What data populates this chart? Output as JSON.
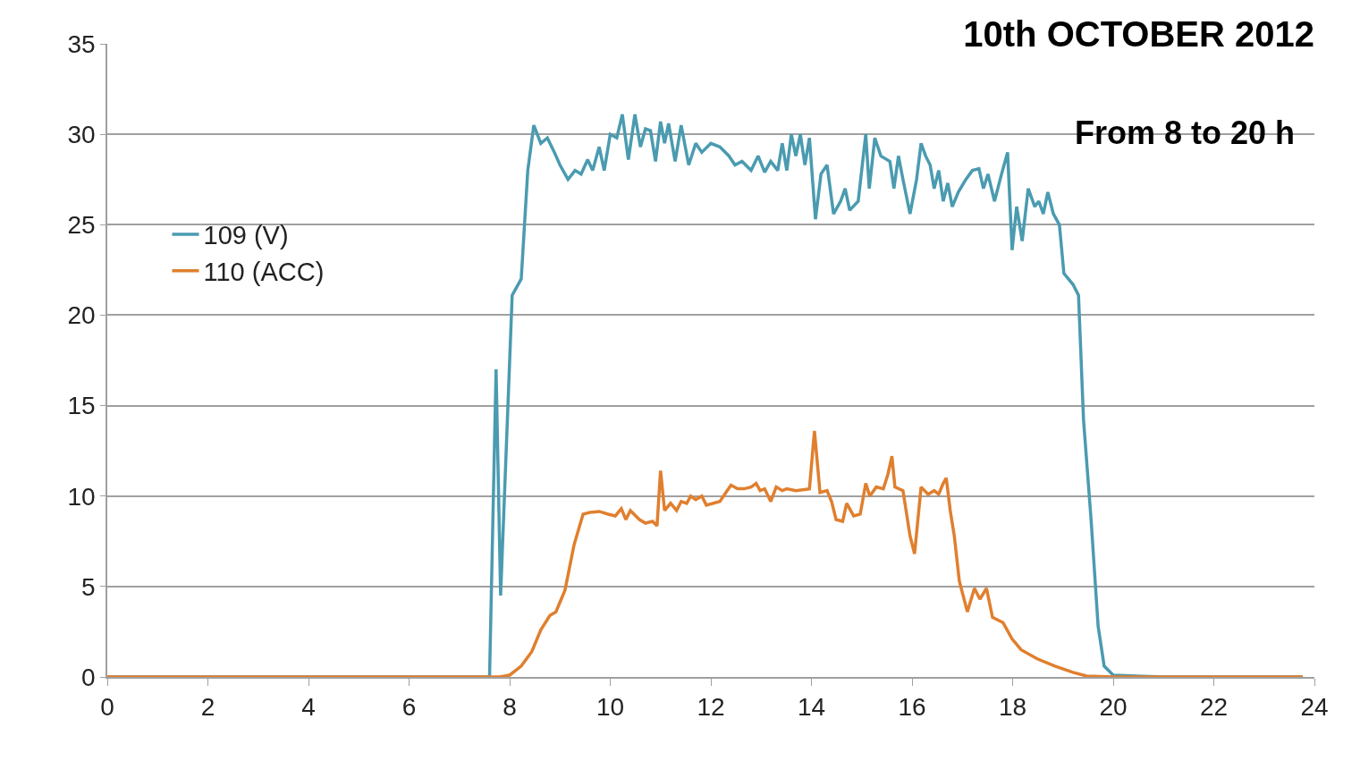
{
  "chart_data": {
    "type": "line",
    "title": "10th OCTOBER 2012",
    "subtitle": "From 8 to 20 h",
    "xlim": [
      0,
      24
    ],
    "xticks": [
      0,
      2,
      4,
      6,
      8,
      10,
      12,
      14,
      16,
      18,
      20,
      22,
      24
    ],
    "ylim": [
      0,
      35
    ],
    "yticks": [
      0,
      5,
      10,
      15,
      20,
      25,
      30,
      35
    ],
    "grid": "y",
    "legend": "left",
    "marker": "none",
    "line_style": "solid",
    "series": [
      {
        "name": "109 (V)",
        "color": "#4a9bb0",
        "x": [
          0,
          7.6,
          7.73,
          7.82,
          8.05,
          8.23,
          8.36,
          8.48,
          8.62,
          8.75,
          8.89,
          9.0,
          9.16,
          9.3,
          9.42,
          9.55,
          9.65,
          9.78,
          9.88,
          10.0,
          10.13,
          10.24,
          10.36,
          10.49,
          10.6,
          10.7,
          10.8,
          10.9,
          11.0,
          11.08,
          11.16,
          11.29,
          11.41,
          11.56,
          11.7,
          11.82,
          12.0,
          12.18,
          12.36,
          12.48,
          12.62,
          12.8,
          12.94,
          13.07,
          13.19,
          13.33,
          13.42,
          13.51,
          13.6,
          13.69,
          13.78,
          13.87,
          13.96,
          14.08,
          14.19,
          14.31,
          14.44,
          14.58,
          14.67,
          14.76,
          14.93,
          15.08,
          15.15,
          15.26,
          15.38,
          15.56,
          15.64,
          15.73,
          15.82,
          15.96,
          16.09,
          16.18,
          16.27,
          16.36,
          16.44,
          16.53,
          16.62,
          16.71,
          16.8,
          16.92,
          17.07,
          17.2,
          17.33,
          17.42,
          17.51,
          17.64,
          17.78,
          17.9,
          17.99,
          18.08,
          18.19,
          18.31,
          18.44,
          18.52,
          18.61,
          18.7,
          18.81,
          18.93,
          19.02,
          19.2,
          19.31,
          19.41,
          19.56,
          19.7,
          19.82,
          20.0,
          21.0,
          23.77
        ],
        "values": [
          0,
          0,
          17,
          4.5,
          21.1,
          22,
          28,
          30.5,
          29.5,
          29.8,
          29,
          28.3,
          27.5,
          28,
          27.8,
          28.6,
          28,
          29.3,
          28,
          30,
          29.8,
          31.1,
          28.6,
          31.1,
          29.3,
          30.3,
          30.2,
          28.5,
          30.7,
          29.5,
          30.6,
          28.5,
          30.5,
          28.3,
          29.5,
          29,
          29.5,
          29.3,
          28.8,
          28.3,
          28.5,
          28,
          28.8,
          27.9,
          28.5,
          28,
          29.5,
          28,
          30,
          28.8,
          30,
          28.3,
          29.8,
          25.3,
          27.8,
          28.3,
          25.6,
          26.3,
          27,
          25.8,
          26.3,
          30,
          27,
          29.8,
          28.8,
          28.5,
          27,
          28.8,
          27.5,
          25.6,
          27.5,
          29.5,
          28.8,
          28.3,
          27,
          28,
          26.3,
          27.3,
          26,
          26.8,
          27.5,
          28,
          28.1,
          27,
          27.8,
          26.3,
          27.8,
          29,
          23.6,
          26,
          24.1,
          27,
          26,
          26.3,
          25.6,
          26.8,
          25.6,
          25,
          22.3,
          21.7,
          21.1,
          14.2,
          8.7,
          2.8,
          0.6,
          0.1,
          0,
          0
        ]
      },
      {
        "name": "110 (ACC)",
        "color": "#e07f2e",
        "x": [
          0,
          7.8,
          8.0,
          8.23,
          8.44,
          8.62,
          8.8,
          8.92,
          9.1,
          9.28,
          9.46,
          9.6,
          9.78,
          9.96,
          10.1,
          10.22,
          10.31,
          10.4,
          10.58,
          10.7,
          10.84,
          10.93,
          11.0,
          11.08,
          11.2,
          11.32,
          11.41,
          11.52,
          11.6,
          11.7,
          11.82,
          11.91,
          12.05,
          12.18,
          12.3,
          12.4,
          12.53,
          12.66,
          12.8,
          12.9,
          12.98,
          13.07,
          13.19,
          13.3,
          13.42,
          13.51,
          13.69,
          13.96,
          14.06,
          14.17,
          14.31,
          14.4,
          14.49,
          14.62,
          14.7,
          14.84,
          14.97,
          15.08,
          15.16,
          15.29,
          15.43,
          15.52,
          15.6,
          15.66,
          15.82,
          15.96,
          16.05,
          16.18,
          16.32,
          16.44,
          16.53,
          16.62,
          16.68,
          16.76,
          16.84,
          16.94,
          17.1,
          17.24,
          17.35,
          17.48,
          17.6,
          17.81,
          17.99,
          18.17,
          18.49,
          18.84,
          19.2,
          19.47,
          20.0,
          23.77
        ],
        "values": [
          0,
          0,
          0.1,
          0.6,
          1.4,
          2.6,
          3.4,
          3.6,
          4.8,
          7.3,
          9.0,
          9.1,
          9.15,
          9.0,
          8.9,
          9.3,
          8.7,
          9.2,
          8.7,
          8.5,
          8.6,
          8.35,
          11.4,
          9.2,
          9.6,
          9.2,
          9.7,
          9.6,
          10.0,
          9.8,
          10.0,
          9.5,
          9.6,
          9.7,
          10.2,
          10.6,
          10.4,
          10.4,
          10.5,
          10.7,
          10.3,
          10.4,
          9.7,
          10.5,
          10.3,
          10.4,
          10.3,
          10.4,
          13.6,
          10.2,
          10.3,
          9.7,
          8.7,
          8.6,
          9.6,
          8.9,
          9.0,
          10.7,
          10.0,
          10.5,
          10.4,
          11.2,
          12.2,
          10.5,
          10.3,
          7.8,
          6.8,
          10.5,
          10.1,
          10.3,
          10.1,
          10.7,
          11.0,
          9.2,
          7.8,
          5.3,
          3.6,
          4.9,
          4.3,
          4.9,
          3.3,
          3.0,
          2.1,
          1.5,
          1.0,
          0.6,
          0.25,
          0.05,
          0,
          0
        ]
      }
    ]
  }
}
